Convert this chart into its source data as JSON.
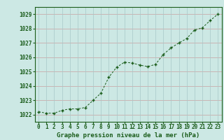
{
  "x": [
    0,
    1,
    2,
    3,
    4,
    5,
    6,
    7,
    8,
    9,
    10,
    11,
    12,
    13,
    14,
    15,
    16,
    17,
    18,
    19,
    20,
    21,
    22,
    23
  ],
  "y": [
    1022.2,
    1022.1,
    1022.1,
    1022.3,
    1022.4,
    1022.4,
    1022.5,
    1023.0,
    1023.5,
    1024.6,
    1025.3,
    1025.65,
    1025.6,
    1025.45,
    1025.35,
    1025.5,
    1026.2,
    1026.65,
    1027.0,
    1027.3,
    1027.9,
    1028.05,
    1028.55,
    1029.0
  ],
  "line_color": "#1a5c1a",
  "marker_color": "#1a5c1a",
  "bg_color": "#cce8e4",
  "grid_color_h": "#c8a0a0",
  "grid_color_v": "#a8c8c8",
  "xlabel": "Graphe pression niveau de la mer (hPa)",
  "ylabel_ticks": [
    1022,
    1023,
    1024,
    1025,
    1026,
    1027,
    1028,
    1029
  ],
  "xlim": [
    -0.5,
    23.5
  ],
  "ylim": [
    1021.5,
    1029.5
  ],
  "xlabel_color": "#1a5c1a",
  "tick_color": "#1a5c1a",
  "xlabel_fontsize": 6.5,
  "tick_fontsize": 5.5
}
